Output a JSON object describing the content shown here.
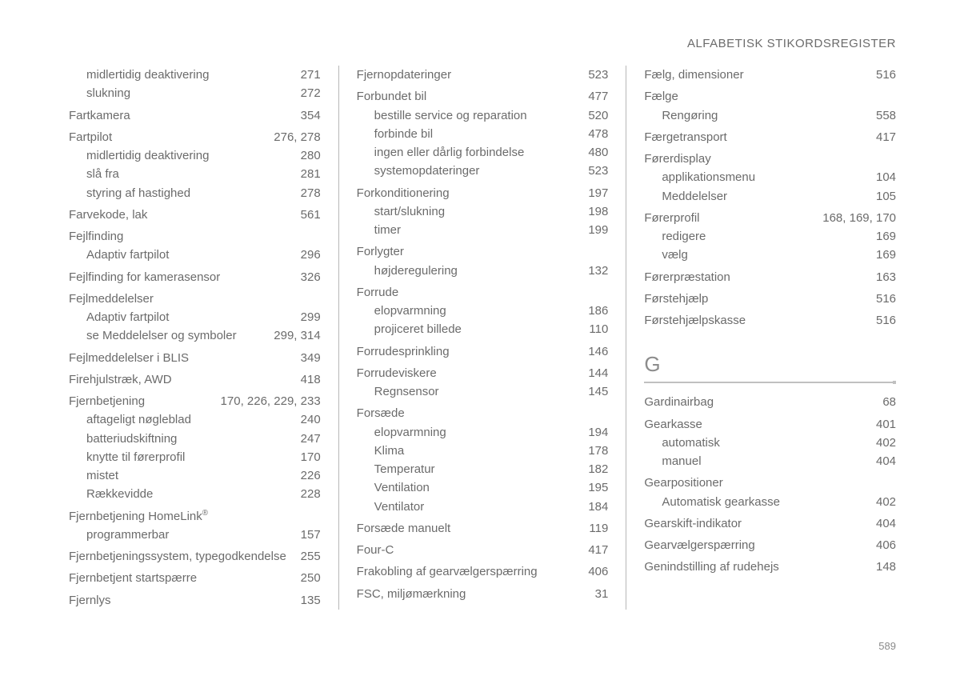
{
  "header": "ALFABETISK STIKORDSREGISTER",
  "page_number": "589",
  "columns": [
    {
      "groups": [
        {
          "rows": [
            {
              "label": "midlertidig deaktivering",
              "page": "271",
              "indent": "sub"
            },
            {
              "label": "slukning",
              "page": "272",
              "indent": "sub"
            }
          ]
        },
        {
          "rows": [
            {
              "label": "Fartkamera",
              "page": "354",
              "indent": "top"
            }
          ]
        },
        {
          "rows": [
            {
              "label": "Fartpilot",
              "page": "276, 278",
              "indent": "top"
            },
            {
              "label": "midlertidig deaktivering",
              "page": "280",
              "indent": "sub"
            },
            {
              "label": "slå fra",
              "page": "281",
              "indent": "sub"
            },
            {
              "label": "styring af hastighed",
              "page": "278",
              "indent": "sub"
            }
          ]
        },
        {
          "rows": [
            {
              "label": "Farvekode, lak",
              "page": "561",
              "indent": "top"
            }
          ]
        },
        {
          "rows": [
            {
              "label": "Fejlfinding",
              "page": "",
              "indent": "top"
            },
            {
              "label": "Adaptiv fartpilot",
              "page": "296",
              "indent": "sub"
            }
          ]
        },
        {
          "rows": [
            {
              "label": "Fejlfinding for kamerasensor",
              "page": "326",
              "indent": "top"
            }
          ]
        },
        {
          "rows": [
            {
              "label": "Fejlmeddelelser",
              "page": "",
              "indent": "top"
            },
            {
              "label": "Adaptiv fartpilot",
              "page": "299",
              "indent": "sub"
            },
            {
              "label": "se Meddelelser og symboler",
              "page": "299, 314",
              "indent": "sub"
            }
          ]
        },
        {
          "rows": [
            {
              "label": "Fejlmeddelelser i BLIS",
              "page": "349",
              "indent": "top"
            }
          ]
        },
        {
          "rows": [
            {
              "label": "Firehjulstræk, AWD",
              "page": "418",
              "indent": "top"
            }
          ]
        },
        {
          "rows": [
            {
              "label": "Fjernbetjening",
              "page": "170, 226, 229, 233",
              "indent": "top"
            },
            {
              "label": "aftageligt nøgleblad",
              "page": "240",
              "indent": "sub"
            },
            {
              "label": "batteriudskiftning",
              "page": "247",
              "indent": "sub"
            },
            {
              "label": "knytte til førerprofil",
              "page": "170",
              "indent": "sub"
            },
            {
              "label": "mistet",
              "page": "226",
              "indent": "sub"
            },
            {
              "label": "Rækkevidde",
              "page": "228",
              "indent": "sub"
            }
          ]
        },
        {
          "rows": [
            {
              "label": "Fjernbetjening HomeLink®",
              "page": "",
              "indent": "top",
              "sup": true
            },
            {
              "label": "programmerbar",
              "page": "157",
              "indent": "sub"
            }
          ]
        },
        {
          "rows": [
            {
              "label": "Fjernbetjeningssystem, typegodkendelse",
              "page": "255",
              "indent": "top"
            }
          ]
        },
        {
          "rows": [
            {
              "label": "Fjernbetjent startspærre",
              "page": "250",
              "indent": "top"
            }
          ]
        },
        {
          "rows": [
            {
              "label": "Fjernlys",
              "page": "135",
              "indent": "top"
            }
          ]
        }
      ]
    },
    {
      "groups": [
        {
          "rows": [
            {
              "label": "Fjernopdateringer",
              "page": "523",
              "indent": "top"
            }
          ]
        },
        {
          "rows": [
            {
              "label": "Forbundet bil",
              "page": "477",
              "indent": "top"
            },
            {
              "label": "bestille service og reparation",
              "page": "520",
              "indent": "sub"
            },
            {
              "label": "forbinde bil",
              "page": "478",
              "indent": "sub"
            },
            {
              "label": "ingen eller dårlig forbindelse",
              "page": "480",
              "indent": "sub"
            },
            {
              "label": "systemopdateringer",
              "page": "523",
              "indent": "sub"
            }
          ]
        },
        {
          "rows": [
            {
              "label": "Forkonditionering",
              "page": "197",
              "indent": "top"
            },
            {
              "label": "start/slukning",
              "page": "198",
              "indent": "sub"
            },
            {
              "label": "timer",
              "page": "199",
              "indent": "sub"
            }
          ]
        },
        {
          "rows": [
            {
              "label": "Forlygter",
              "page": "",
              "indent": "top"
            },
            {
              "label": "højderegulering",
              "page": "132",
              "indent": "sub"
            }
          ]
        },
        {
          "rows": [
            {
              "label": "Forrude",
              "page": "",
              "indent": "top"
            },
            {
              "label": "elopvarmning",
              "page": "186",
              "indent": "sub"
            },
            {
              "label": "projiceret billede",
              "page": "110",
              "indent": "sub"
            }
          ]
        },
        {
          "rows": [
            {
              "label": "Forrudesprinkling",
              "page": "146",
              "indent": "top"
            }
          ]
        },
        {
          "rows": [
            {
              "label": "Forrudeviskere",
              "page": "144",
              "indent": "top"
            },
            {
              "label": "Regnsensor",
              "page": "145",
              "indent": "sub"
            }
          ]
        },
        {
          "rows": [
            {
              "label": "Forsæde",
              "page": "",
              "indent": "top"
            },
            {
              "label": "elopvarmning",
              "page": "194",
              "indent": "sub"
            },
            {
              "label": "Klima",
              "page": "178",
              "indent": "sub"
            },
            {
              "label": "Temperatur",
              "page": "182",
              "indent": "sub"
            },
            {
              "label": "Ventilation",
              "page": "195",
              "indent": "sub"
            },
            {
              "label": "Ventilator",
              "page": "184",
              "indent": "sub"
            }
          ]
        },
        {
          "rows": [
            {
              "label": "Forsæde manuelt",
              "page": "119",
              "indent": "top"
            }
          ]
        },
        {
          "rows": [
            {
              "label": "Four-C",
              "page": "417",
              "indent": "top"
            }
          ]
        },
        {
          "rows": [
            {
              "label": "Frakobling af gearvælgerspærring",
              "page": "406",
              "indent": "top"
            }
          ]
        },
        {
          "rows": [
            {
              "label": "FSC, miljømærkning",
              "page": "31",
              "indent": "top"
            }
          ]
        }
      ]
    },
    {
      "groups": [
        {
          "rows": [
            {
              "label": "Fælg, dimensioner",
              "page": "516",
              "indent": "top"
            }
          ]
        },
        {
          "rows": [
            {
              "label": "Fælge",
              "page": "",
              "indent": "top"
            },
            {
              "label": "Rengøring",
              "page": "558",
              "indent": "sub"
            }
          ]
        },
        {
          "rows": [
            {
              "label": "Færgetransport",
              "page": "417",
              "indent": "top"
            }
          ]
        },
        {
          "rows": [
            {
              "label": "Førerdisplay",
              "page": "",
              "indent": "top"
            },
            {
              "label": "applikationsmenu",
              "page": "104",
              "indent": "sub"
            },
            {
              "label": "Meddelelser",
              "page": "105",
              "indent": "sub"
            }
          ]
        },
        {
          "rows": [
            {
              "label": "Førerprofil",
              "page": "168, 169, 170",
              "indent": "top"
            },
            {
              "label": "redigere",
              "page": "169",
              "indent": "sub"
            },
            {
              "label": "vælg",
              "page": "169",
              "indent": "sub"
            }
          ]
        },
        {
          "rows": [
            {
              "label": "Førerpræstation",
              "page": "163",
              "indent": "top"
            }
          ]
        },
        {
          "rows": [
            {
              "label": "Førstehjælp",
              "page": "516",
              "indent": "top"
            }
          ]
        },
        {
          "rows": [
            {
              "label": "Førstehjælpskasse",
              "page": "516",
              "indent": "top"
            }
          ]
        }
      ],
      "section": {
        "letter": "G",
        "groups": [
          {
            "rows": [
              {
                "label": "Gardinairbag",
                "page": "68",
                "indent": "top"
              }
            ]
          },
          {
            "rows": [
              {
                "label": "Gearkasse",
                "page": "401",
                "indent": "top"
              },
              {
                "label": "automatisk",
                "page": "402",
                "indent": "sub"
              },
              {
                "label": "manuel",
                "page": "404",
                "indent": "sub"
              }
            ]
          },
          {
            "rows": [
              {
                "label": "Gearpositioner",
                "page": "",
                "indent": "top"
              },
              {
                "label": "Automatisk gearkasse",
                "page": "402",
                "indent": "sub"
              }
            ]
          },
          {
            "rows": [
              {
                "label": "Gearskift-indikator",
                "page": "404",
                "indent": "top"
              }
            ]
          },
          {
            "rows": [
              {
                "label": "Gearvælgerspærring",
                "page": "406",
                "indent": "top"
              }
            ]
          },
          {
            "rows": [
              {
                "label": "Genindstilling af rudehejs",
                "page": "148",
                "indent": "top"
              }
            ]
          }
        ]
      }
    }
  ]
}
